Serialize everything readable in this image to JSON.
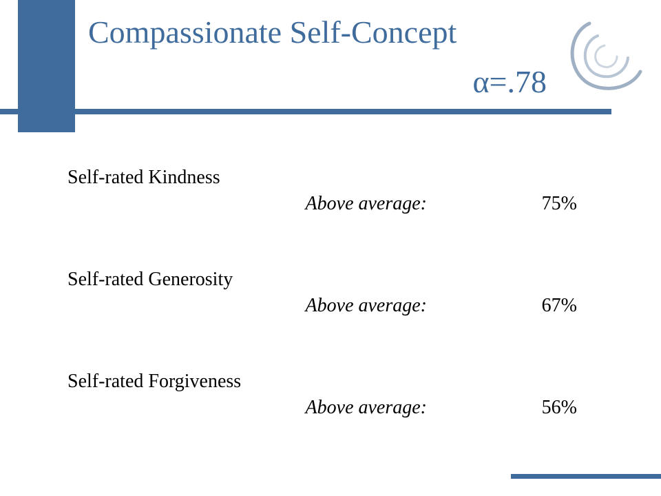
{
  "slide": {
    "title": "Compassionate Self-Concept",
    "alpha": "α=.78",
    "accent_color": "#3f6c9c",
    "logo_icon": "swirl-logo-icon"
  },
  "items": [
    {
      "label": "Self-rated Kindness",
      "row_label": "Above average:",
      "value": "75%"
    },
    {
      "label": "Self-rated Generosity",
      "row_label": "Above average:",
      "value": "67%"
    },
    {
      "label": "Self-rated Forgiveness",
      "row_label": "Above average:",
      "value": "56%"
    }
  ]
}
